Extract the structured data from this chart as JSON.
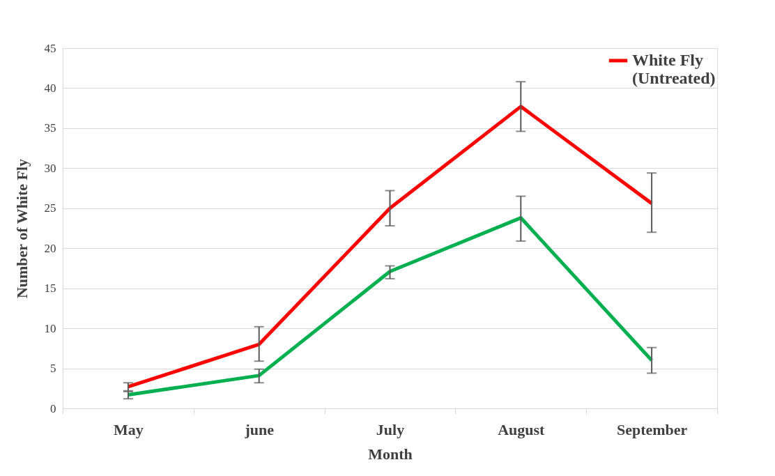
{
  "chart_data": {
    "type": "line",
    "xlabel": "Month",
    "ylabel": "Number of White Fly",
    "categories": [
      "May",
      "june",
      "July",
      "August",
      "September"
    ],
    "series": [
      {
        "name": "White Fly (Untreated)",
        "color": "#ff0000",
        "values": [
          2.7,
          8.0,
          25.0,
          37.7,
          25.6
        ],
        "errors": [
          [
            2.2,
            3.2
          ],
          [
            5.9,
            10.2
          ],
          [
            22.8,
            27.2
          ],
          [
            34.6,
            40.8
          ],
          [
            22.0,
            29.4
          ]
        ]
      },
      {
        "color": "#00b050",
        "values": [
          1.7,
          4.1,
          17.1,
          23.8,
          6.0
        ],
        "errors": [
          [
            1.2,
            2.1
          ],
          [
            3.2,
            4.9
          ],
          [
            16.2,
            17.8
          ],
          [
            20.9,
            26.5
          ],
          [
            4.4,
            7.6
          ]
        ]
      }
    ],
    "ylim": [
      0,
      45
    ],
    "yticks": [
      0,
      5,
      10,
      15,
      20,
      25,
      30,
      35,
      40,
      45
    ],
    "grid": "y",
    "legend": "top right",
    "marker": "none",
    "line_style": "solid"
  }
}
